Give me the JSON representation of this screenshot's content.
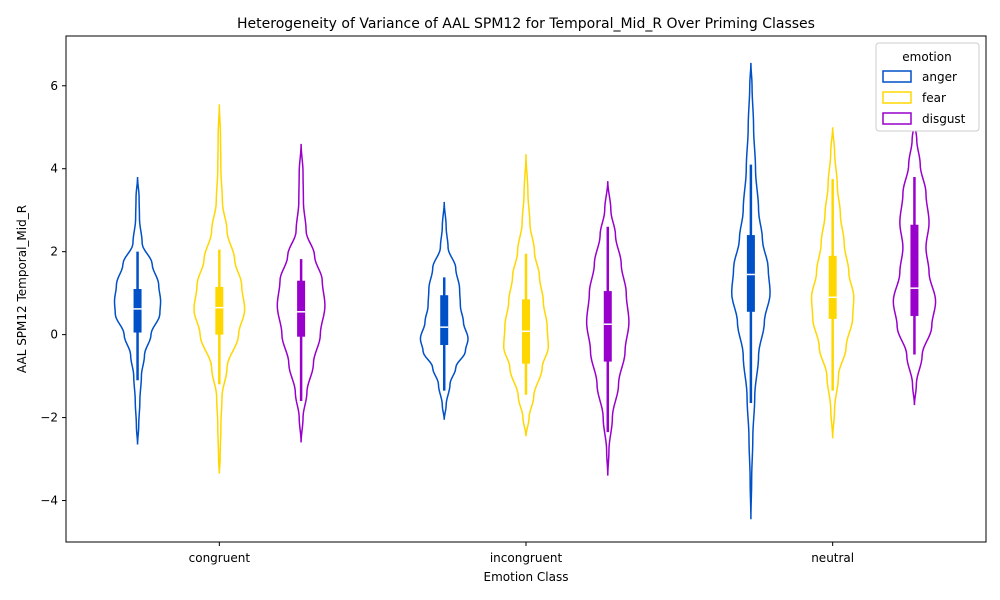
{
  "chart_data": {
    "type": "violin",
    "title": "Heterogeneity of Variance of AAL SPM12 for Temporal_Mid_R Over Priming Classes",
    "xlabel": "Emotion Class",
    "ylabel": "AAL SPM12 Temporal_Mid_R",
    "categories": [
      "congruent",
      "incongruent",
      "neutral"
    ],
    "ylim": [
      -5,
      7.2
    ],
    "yticks": [
      -4,
      -2,
      0,
      2,
      4,
      6
    ],
    "yticklabels": [
      "−4",
      "−2",
      "0",
      "2",
      "4",
      "6"
    ],
    "grid": false,
    "legend": {
      "title": "emotion",
      "position": "top-right",
      "entries": [
        "anger",
        "fear",
        "disgust"
      ]
    },
    "series": [
      {
        "name": "anger",
        "color": "#0050c8",
        "violins": [
          {
            "category": "congruent",
            "ymin": -2.65,
            "ymax": 3.8,
            "q1": 0.05,
            "median": 0.62,
            "q3": 1.1,
            "whisker_low": -1.1,
            "whisker_high": 2.0,
            "profile": [
              [
                -2.65,
                0.0
              ],
              [
                -2.2,
                0.03
              ],
              [
                -1.6,
                0.06
              ],
              [
                -1.0,
                0.1
              ],
              [
                -0.5,
                0.18
              ],
              [
                0.0,
                0.35
              ],
              [
                0.5,
                0.58
              ],
              [
                0.8,
                0.6
              ],
              [
                1.2,
                0.55
              ],
              [
                1.7,
                0.38
              ],
              [
                2.2,
                0.12
              ],
              [
                2.8,
                0.05
              ],
              [
                3.3,
                0.04
              ],
              [
                3.8,
                0.0
              ]
            ]
          },
          {
            "category": "incongruent",
            "ymin": -2.05,
            "ymax": 3.2,
            "q1": -0.25,
            "median": 0.18,
            "q3": 0.95,
            "whisker_low": -1.35,
            "whisker_high": 1.38,
            "profile": [
              [
                -2.05,
                0.0
              ],
              [
                -1.7,
                0.05
              ],
              [
                -1.2,
                0.15
              ],
              [
                -0.8,
                0.3
              ],
              [
                -0.4,
                0.55
              ],
              [
                -0.1,
                0.62
              ],
              [
                0.3,
                0.5
              ],
              [
                0.7,
                0.42
              ],
              [
                1.1,
                0.4
              ],
              [
                1.6,
                0.3
              ],
              [
                2.1,
                0.1
              ],
              [
                2.6,
                0.05
              ],
              [
                3.2,
                0.0
              ]
            ]
          },
          {
            "category": "neutral",
            "ymin": -4.45,
            "ymax": 6.55,
            "q1": 0.55,
            "median": 1.45,
            "q3": 2.4,
            "whisker_low": -1.65,
            "whisker_high": 4.1,
            "profile": [
              [
                -4.45,
                0.0
              ],
              [
                -3.5,
                0.02
              ],
              [
                -2.5,
                0.05
              ],
              [
                -1.5,
                0.1
              ],
              [
                -0.5,
                0.2
              ],
              [
                0.3,
                0.35
              ],
              [
                1.0,
                0.5
              ],
              [
                1.6,
                0.45
              ],
              [
                2.3,
                0.3
              ],
              [
                3.0,
                0.2
              ],
              [
                4.0,
                0.12
              ],
              [
                5.0,
                0.07
              ],
              [
                6.0,
                0.03
              ],
              [
                6.55,
                0.0
              ]
            ]
          }
        ]
      },
      {
        "name": "fear",
        "color": "#ffd700",
        "violins": [
          {
            "category": "congruent",
            "ymin": -3.35,
            "ymax": 5.55,
            "q1": 0.0,
            "median": 0.65,
            "q3": 1.15,
            "whisker_low": -1.2,
            "whisker_high": 2.05,
            "profile": [
              [
                -3.35,
                0.0
              ],
              [
                -3.0,
                0.02
              ],
              [
                -2.2,
                0.04
              ],
              [
                -1.5,
                0.07
              ],
              [
                -0.8,
                0.2
              ],
              [
                0.0,
                0.5
              ],
              [
                0.6,
                0.66
              ],
              [
                1.2,
                0.58
              ],
              [
                1.8,
                0.4
              ],
              [
                2.5,
                0.2
              ],
              [
                3.2,
                0.08
              ],
              [
                4.0,
                0.04
              ],
              [
                4.8,
                0.03
              ],
              [
                5.55,
                0.0
              ]
            ]
          },
          {
            "category": "incongruent",
            "ymin": -2.45,
            "ymax": 4.35,
            "q1": -0.7,
            "median": 0.08,
            "q3": 0.85,
            "whisker_low": -1.45,
            "whisker_high": 1.95,
            "profile": [
              [
                -2.45,
                0.0
              ],
              [
                -2.0,
                0.08
              ],
              [
                -1.5,
                0.2
              ],
              [
                -0.8,
                0.42
              ],
              [
                -0.3,
                0.58
              ],
              [
                0.2,
                0.55
              ],
              [
                0.8,
                0.45
              ],
              [
                1.4,
                0.35
              ],
              [
                2.0,
                0.22
              ],
              [
                2.7,
                0.1
              ],
              [
                3.4,
                0.05
              ],
              [
                4.35,
                0.0
              ]
            ]
          },
          {
            "category": "neutral",
            "ymin": -2.5,
            "ymax": 5.0,
            "q1": 0.38,
            "median": 0.9,
            "q3": 1.9,
            "whisker_low": -1.35,
            "whisker_high": 3.75,
            "profile": [
              [
                -2.5,
                0.0
              ],
              [
                -1.8,
                0.05
              ],
              [
                -1.0,
                0.15
              ],
              [
                -0.3,
                0.35
              ],
              [
                0.4,
                0.52
              ],
              [
                0.9,
                0.55
              ],
              [
                1.5,
                0.42
              ],
              [
                2.2,
                0.3
              ],
              [
                2.9,
                0.2
              ],
              [
                3.6,
                0.12
              ],
              [
                4.4,
                0.05
              ],
              [
                5.0,
                0.0
              ]
            ]
          }
        ]
      },
      {
        "name": "disgust",
        "color": "#9900cc",
        "violins": [
          {
            "category": "congruent",
            "ymin": -2.6,
            "ymax": 4.6,
            "q1": -0.05,
            "median": 0.55,
            "q3": 1.3,
            "whisker_low": -1.6,
            "whisker_high": 1.82,
            "profile": [
              [
                -2.6,
                0.0
              ],
              [
                -2.0,
                0.05
              ],
              [
                -1.4,
                0.15
              ],
              [
                -0.7,
                0.32
              ],
              [
                0.0,
                0.5
              ],
              [
                0.7,
                0.62
              ],
              [
                1.3,
                0.55
              ],
              [
                1.9,
                0.35
              ],
              [
                2.5,
                0.13
              ],
              [
                3.2,
                0.06
              ],
              [
                3.9,
                0.05
              ],
              [
                4.6,
                0.0
              ]
            ]
          },
          {
            "category": "incongruent",
            "ymin": -3.4,
            "ymax": 3.7,
            "q1": -0.65,
            "median": 0.25,
            "q3": 1.05,
            "whisker_low": -2.35,
            "whisker_high": 2.6,
            "profile": [
              [
                -3.4,
                0.0
              ],
              [
                -2.8,
                0.03
              ],
              [
                -2.0,
                0.12
              ],
              [
                -1.2,
                0.28
              ],
              [
                -0.4,
                0.45
              ],
              [
                0.3,
                0.55
              ],
              [
                1.0,
                0.48
              ],
              [
                1.7,
                0.35
              ],
              [
                2.4,
                0.2
              ],
              [
                3.0,
                0.08
              ],
              [
                3.7,
                0.0
              ]
            ]
          },
          {
            "category": "neutral",
            "ymin": -1.7,
            "ymax": 5.15,
            "q1": 0.45,
            "median": 1.12,
            "q3": 2.65,
            "whisker_low": -0.48,
            "whisker_high": 3.8,
            "profile": [
              [
                -1.7,
                0.0
              ],
              [
                -1.2,
                0.05
              ],
              [
                -0.5,
                0.2
              ],
              [
                0.2,
                0.45
              ],
              [
                0.8,
                0.55
              ],
              [
                1.5,
                0.38
              ],
              [
                2.1,
                0.3
              ],
              [
                2.7,
                0.38
              ],
              [
                3.4,
                0.3
              ],
              [
                4.1,
                0.15
              ],
              [
                4.7,
                0.06
              ],
              [
                5.15,
                0.0
              ]
            ]
          }
        ]
      }
    ]
  }
}
